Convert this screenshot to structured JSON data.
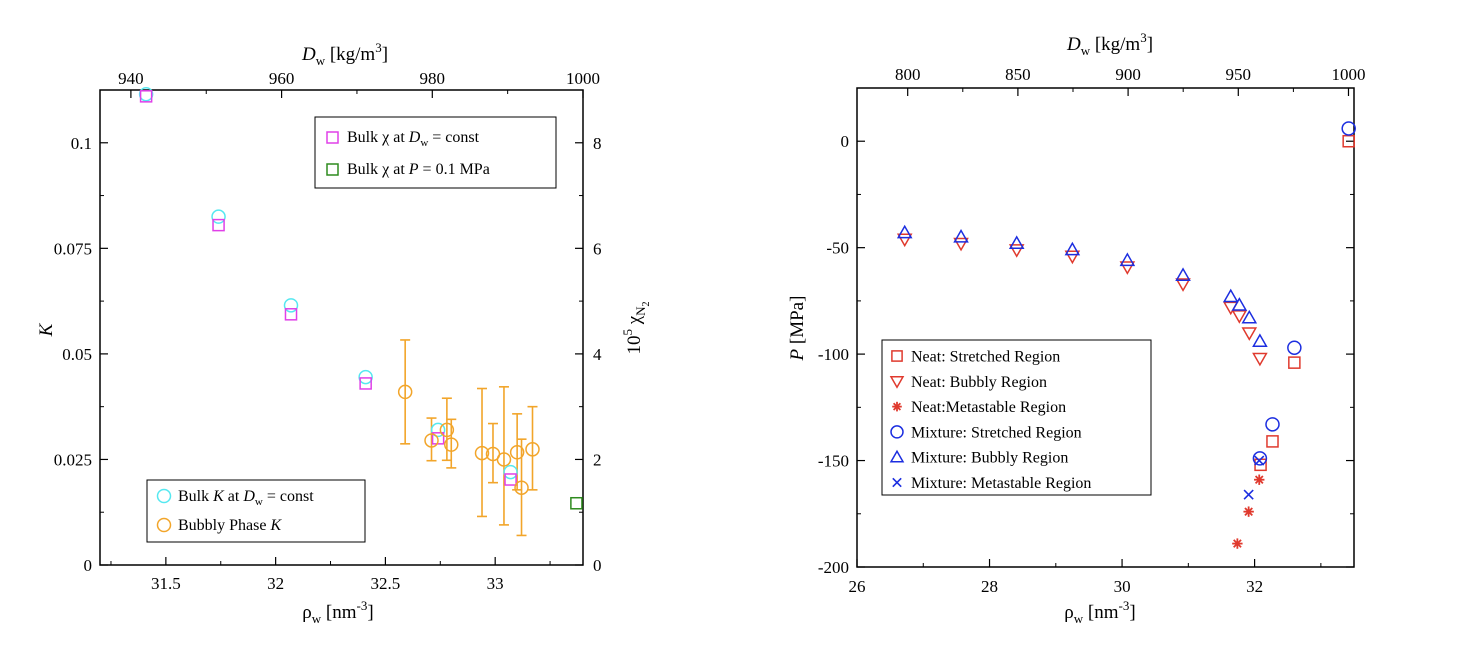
{
  "colors": {
    "cyan": "#55e8f0",
    "magenta": "#e040e8",
    "orange": "#f2a52a",
    "green": "#2e8b1e",
    "red": "#e03a2e",
    "blue": "#1c2ee0",
    "axis": "#000000"
  },
  "chart_data": [
    {
      "type": "scatter",
      "x_bottom": {
        "label_main": "ρ",
        "label_sub": "w",
        "label_unit": " [nm",
        "label_sup": "-3",
        "label_close": "]",
        "range": [
          31.2,
          33.4
        ],
        "ticks": [
          "31.5",
          "32",
          "32.5",
          "33"
        ],
        "tick_values": [
          31.5,
          32,
          32.5,
          33
        ]
      },
      "x_top": {
        "label_main": "D",
        "label_sub": "w",
        "label_unit": " [kg/m",
        "label_sup": "3",
        "label_close": "]",
        "range": [
          935.9,
          1000
        ],
        "ticks": [
          "940",
          "960",
          "980",
          "1000"
        ],
        "tick_values": [
          940,
          960,
          980,
          1000
        ]
      },
      "y_left": {
        "label": "K",
        "range": [
          0,
          0.1125
        ],
        "ticks": [
          "0",
          "0.025",
          "0.05",
          "0.075",
          "0.1"
        ],
        "tick_values": [
          0,
          0.025,
          0.05,
          0.075,
          0.1
        ]
      },
      "y_right": {
        "label_main": "10",
        "label_sup": "5",
        "label_chi": " χ",
        "label_sub": "N",
        "label_subsub": "2",
        "range": [
          0,
          9
        ],
        "ticks": [
          "0",
          "2",
          "4",
          "6",
          "8"
        ],
        "tick_values": [
          0,
          2,
          4,
          6,
          8
        ]
      },
      "legend_top": [
        {
          "text_a": "Bulk χ at ",
          "text_b": "D",
          "text_sub": "w",
          "text_c": " = const",
          "marker": "square",
          "color": "#e040e8"
        },
        {
          "text_a": "Bulk χ at ",
          "text_b": "P",
          "text_sub": "",
          "text_c": " = 0.1 MPa",
          "marker": "square",
          "color": "#2e8b1e"
        }
      ],
      "legend_bottom": [
        {
          "text_a": "Bulk ",
          "text_b": "K",
          "text_a2": " at ",
          "text_d": "D",
          "text_sub": "w",
          "text_c": " = const",
          "marker": "circle",
          "color": "#55e8f0"
        },
        {
          "text_a": "Bubbly Phase ",
          "text_b": "K",
          "text_c": "",
          "marker": "circle",
          "color": "#f2a52a"
        }
      ],
      "series": [
        {
          "name": "Bulk K at Dw = const",
          "marker": "circle",
          "color": "#55e8f0",
          "axis": "left",
          "x": [
            31.41,
            31.74,
            32.07,
            32.41,
            32.74,
            33.07
          ],
          "y": [
            0.1115,
            0.0825,
            0.0615,
            0.0445,
            0.032,
            0.022
          ]
        },
        {
          "name": "Bulk χ at Dw = const",
          "marker": "square",
          "color": "#e040e8",
          "axis": "right",
          "x": [
            31.41,
            31.74,
            32.07,
            32.41,
            32.74,
            33.07
          ],
          "y": [
            8.88,
            6.44,
            4.75,
            3.44,
            2.4,
            1.62
          ]
        },
        {
          "name": "Bulk χ at P = 0.1 MPa",
          "marker": "square",
          "color": "#2e8b1e",
          "axis": "right",
          "x": [
            33.37
          ],
          "y": [
            1.17
          ]
        },
        {
          "name": "Bubbly Phase K",
          "marker": "circle",
          "color": "#f2a52a",
          "axis": "left",
          "x": [
            32.59,
            32.71,
            32.78,
            32.8,
            32.94,
            32.99,
            33.04,
            33.1,
            33.12,
            33.17
          ],
          "y": [
            0.041,
            0.0295,
            0.032,
            0.0285,
            0.0265,
            0.0263,
            0.025,
            0.0267,
            0.0183,
            0.0274
          ],
          "err_low": [
            0.0287,
            0.0247,
            0.0248,
            0.023,
            0.0115,
            0.0195,
            0.0095,
            0.0178,
            0.007,
            0.0178
          ],
          "err_high": [
            0.0533,
            0.0348,
            0.0395,
            0.0345,
            0.0418,
            0.0335,
            0.0422,
            0.0358,
            0.0298,
            0.0375
          ]
        }
      ]
    },
    {
      "type": "scatter",
      "x_bottom": {
        "label_main": "ρ",
        "label_sub": "w",
        "label_unit": " [nm",
        "label_sup": "-3",
        "label_close": "]",
        "range": [
          26,
          33.5
        ],
        "ticks": [
          "26",
          "28",
          "30",
          "32"
        ],
        "tick_values": [
          26,
          28,
          30,
          32
        ]
      },
      "x_top": {
        "label_main": "D",
        "label_sub": "w",
        "label_unit": " [kg/m",
        "label_sup": "3",
        "label_close": "]",
        "range": [
          777,
          1002.5
        ],
        "ticks": [
          "800",
          "850",
          "900",
          "950",
          "1000"
        ],
        "tick_values": [
          800,
          850,
          900,
          950,
          1000
        ]
      },
      "y_left": {
        "label_main": "P",
        "label_unit": " [MPa]",
        "range": [
          -200,
          25
        ],
        "ticks": [
          "-200",
          "-150",
          "-100",
          "-50",
          "0"
        ],
        "tick_values": [
          -200,
          -150,
          -100,
          -50,
          0
        ]
      },
      "legend": [
        {
          "text": "Neat: Stretched Region",
          "marker": "square",
          "color": "#e03a2e"
        },
        {
          "text": "Neat: Bubbly Region",
          "marker": "triangle-down",
          "color": "#e03a2e"
        },
        {
          "text": "Neat:Metastable Region",
          "marker": "asterisk",
          "color": "#e03a2e"
        },
        {
          "text": "Mixture: Stretched Region",
          "marker": "circle",
          "color": "#1c2ee0"
        },
        {
          "text": "Mixture: Bubbly Region",
          "marker": "triangle-up",
          "color": "#1c2ee0"
        },
        {
          "text": "Mixture: Metastable Region",
          "marker": "x",
          "color": "#1c2ee0"
        }
      ],
      "series": [
        {
          "name": "Neat: Stretched Region",
          "marker": "square",
          "color": "#e03a2e",
          "x": [
            32.09,
            32.27,
            32.6,
            33.42
          ],
          "y": [
            -152,
            -141,
            -104,
            0
          ]
        },
        {
          "name": "Neat: Bubbly Region",
          "marker": "triangle-down",
          "color": "#e03a2e",
          "x": [
            26.72,
            27.57,
            28.41,
            29.25,
            30.08,
            30.92,
            31.64,
            31.77,
            31.92,
            32.08
          ],
          "y": [
            -46,
            -48,
            -51,
            -54,
            -59,
            -67,
            -78,
            -82,
            -90,
            -102
          ]
        },
        {
          "name": "Neat:Metastable Region",
          "marker": "asterisk",
          "color": "#e03a2e",
          "x": [
            31.74,
            31.91,
            32.07
          ],
          "y": [
            -189,
            -174,
            -159
          ]
        },
        {
          "name": "Mixture: Stretched Region",
          "marker": "circle",
          "color": "#1c2ee0",
          "x": [
            32.08,
            32.27,
            32.6,
            33.42
          ],
          "y": [
            -149,
            -133,
            -97,
            6
          ]
        },
        {
          "name": "Mixture: Bubbly Region",
          "marker": "triangle-up",
          "color": "#1c2ee0",
          "x": [
            26.72,
            27.57,
            28.41,
            29.25,
            30.08,
            30.92,
            31.64,
            31.77,
            31.92,
            32.08
          ],
          "y": [
            -43,
            -45,
            -48,
            -51,
            -56,
            -63,
            -73,
            -77,
            -83,
            -94
          ]
        },
        {
          "name": "Mixture: Metastable Region",
          "marker": "x",
          "color": "#1c2ee0",
          "x": [
            31.91,
            32.07
          ],
          "y": [
            -166,
            -150
          ]
        }
      ]
    }
  ]
}
